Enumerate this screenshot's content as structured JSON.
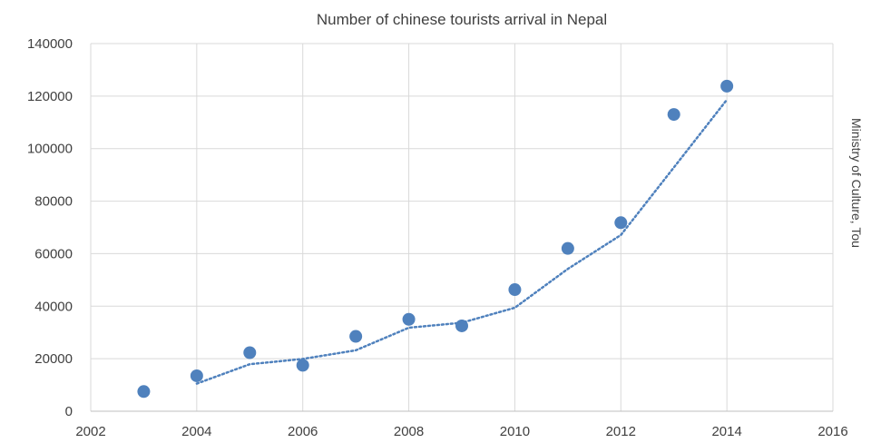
{
  "chart_data": {
    "type": "scatter",
    "title": "Number of chinese tourists arrival in Nepal",
    "xlabel": "",
    "ylabel": "Ministry of Culture, Tou",
    "xlim": [
      2002,
      2016
    ],
    "ylim": [
      0,
      140000
    ],
    "x_ticks": [
      2002,
      2004,
      2006,
      2008,
      2010,
      2012,
      2014,
      2016
    ],
    "y_ticks": [
      0,
      20000,
      40000,
      60000,
      80000,
      100000,
      120000,
      140000
    ],
    "grid": true,
    "series": [
      {
        "x": [
          2003,
          2004,
          2005,
          2006,
          2007,
          2008,
          2009,
          2010,
          2011,
          2012,
          2013,
          2014
        ],
        "y": [
          7500,
          13500,
          22300,
          17500,
          28500,
          35000,
          32500,
          46300,
          62000,
          71800,
          113000,
          123800
        ],
        "color": "#4f81bd"
      }
    ],
    "trendline": {
      "style": "dotted",
      "color": "#4f81bd",
      "x": [
        2004,
        2005,
        2006,
        2007,
        2008,
        2009,
        2010,
        2011,
        2012,
        2013,
        2014
      ],
      "y": [
        10500,
        17900,
        19900,
        23200,
        31800,
        33700,
        39400,
        54200,
        67100,
        92800,
        118600
      ]
    }
  }
}
